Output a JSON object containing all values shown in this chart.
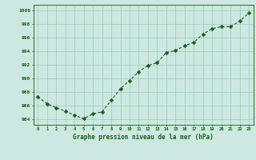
{
  "x": [
    0,
    1,
    2,
    3,
    4,
    5,
    6,
    7,
    8,
    9,
    10,
    11,
    12,
    13,
    14,
    15,
    16,
    17,
    18,
    19,
    20,
    21,
    22,
    23
  ],
  "y": [
    987.3,
    986.3,
    985.7,
    985.2,
    984.6,
    984.1,
    984.8,
    985.1,
    986.8,
    988.5,
    989.7,
    991.0,
    991.9,
    992.3,
    993.8,
    994.1,
    994.8,
    995.3,
    996.5,
    997.3,
    997.6,
    997.6,
    998.4,
    999.6
  ],
  "line_color": "#1a5c1a",
  "marker": "D",
  "marker_size": 2.5,
  "bg_color": "#cce8e0",
  "grid_color": "#99ccbb",
  "title": "Graphe pression niveau de la mer (hPa)",
  "ylabel_ticks": [
    984,
    986,
    988,
    990,
    992,
    994,
    996,
    998,
    1000
  ],
  "xtick_labels": [
    "0",
    "1",
    "2",
    "3",
    "4",
    "5",
    "6",
    "7",
    "8",
    "9",
    "10",
    "11",
    "12",
    "13",
    "14",
    "15",
    "16",
    "17",
    "18",
    "19",
    "20",
    "21",
    "22",
    "23"
  ],
  "ylim": [
    983.2,
    1000.8
  ],
  "xlim": [
    -0.5,
    23.5
  ]
}
